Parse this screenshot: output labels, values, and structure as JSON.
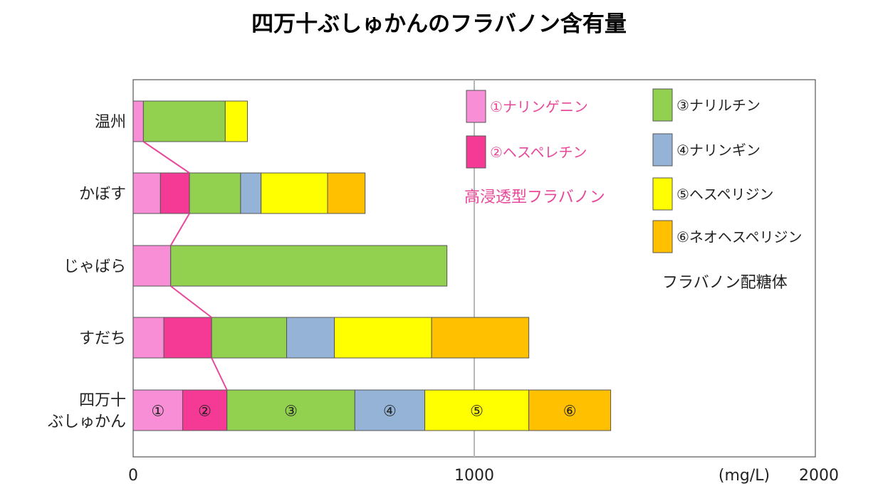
{
  "chart_data": {
    "type": "bar",
    "orientation": "horizontal",
    "stacked": true,
    "title": "四万十ぶしゅかんのフラバノン含有量",
    "unit_label": "(mg/L)",
    "xlim": [
      0,
      2000
    ],
    "x_ticks": [
      "0",
      "1000",
      "2000"
    ],
    "reference_line": 1000,
    "categories": [
      [
        "温州"
      ],
      [
        "かぼす"
      ],
      [
        "じゃばら"
      ],
      [
        "すだち"
      ],
      [
        "四万十",
        "ぶしゅかん"
      ]
    ],
    "series": [
      {
        "name": "①ナリンゲニン",
        "color": "#f88fd6",
        "values": [
          30,
          80,
          110,
          90,
          145
        ]
      },
      {
        "name": "②ヘスペレチン",
        "color": "#f53a96",
        "values": [
          0,
          85,
          0,
          140,
          130
        ]
      },
      {
        "name": "③ナリルチン",
        "color": "#92d050",
        "values": [
          240,
          150,
          810,
          220,
          375
        ]
      },
      {
        "name": "④ナリンギン",
        "color": "#95b3d7",
        "values": [
          0,
          60,
          0,
          140,
          205
        ]
      },
      {
        "name": "⑤ヘスペリジン",
        "color": "#ffff00",
        "values": [
          65,
          195,
          0,
          285,
          305
        ]
      },
      {
        "name": "⑥ネオヘスペリジン",
        "color": "#ffc000",
        "values": [
          0,
          110,
          0,
          285,
          240
        ]
      }
    ],
    "segment_labels": [
      "①",
      "②",
      "③",
      "④",
      "⑤",
      "⑥"
    ],
    "group_labels": {
      "aglycone": "高浸透型フラバノン",
      "glycoside": "フラバノン配糖体"
    },
    "connector_color": "#e8489a",
    "grid": false,
    "legend_position": "inside-top-right"
  }
}
